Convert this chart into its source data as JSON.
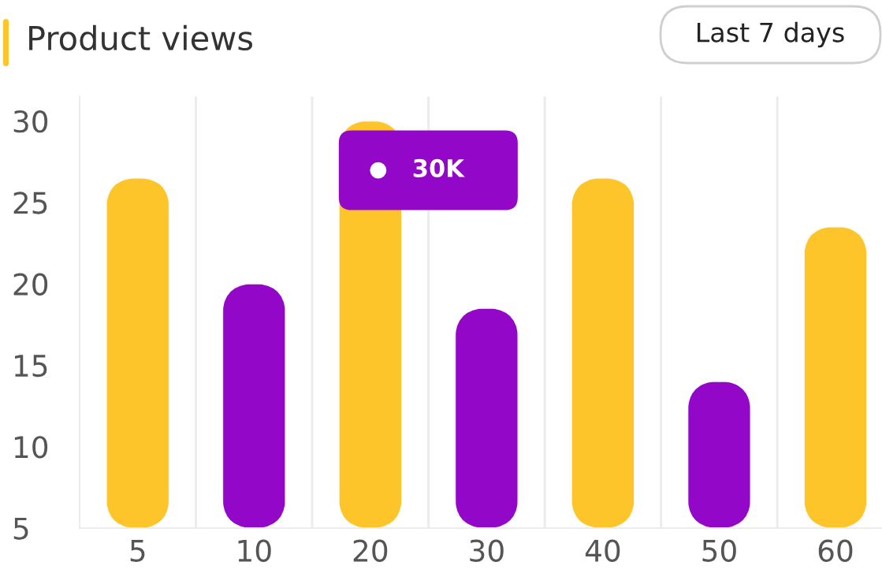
{
  "chart_data": {
    "type": "bar",
    "title": "Product views",
    "categories": [
      "5",
      "10",
      "20",
      "30",
      "40",
      "50",
      "60"
    ],
    "values": [
      26.5,
      20,
      30,
      18.5,
      26.5,
      14,
      23.5
    ],
    "colors": [
      "#fec52b",
      "#9307c9",
      "#fec52b",
      "#9307c9",
      "#fec52b",
      "#9307c9",
      "#fec52b"
    ],
    "ylim": [
      5,
      31.5
    ],
    "yticks": [
      5,
      10,
      15,
      20,
      25,
      30
    ],
    "grid": "x",
    "annotations": [
      "Last 7 days",
      {
        "text": "30K",
        "x": "20",
        "y": 30
      }
    ]
  }
}
